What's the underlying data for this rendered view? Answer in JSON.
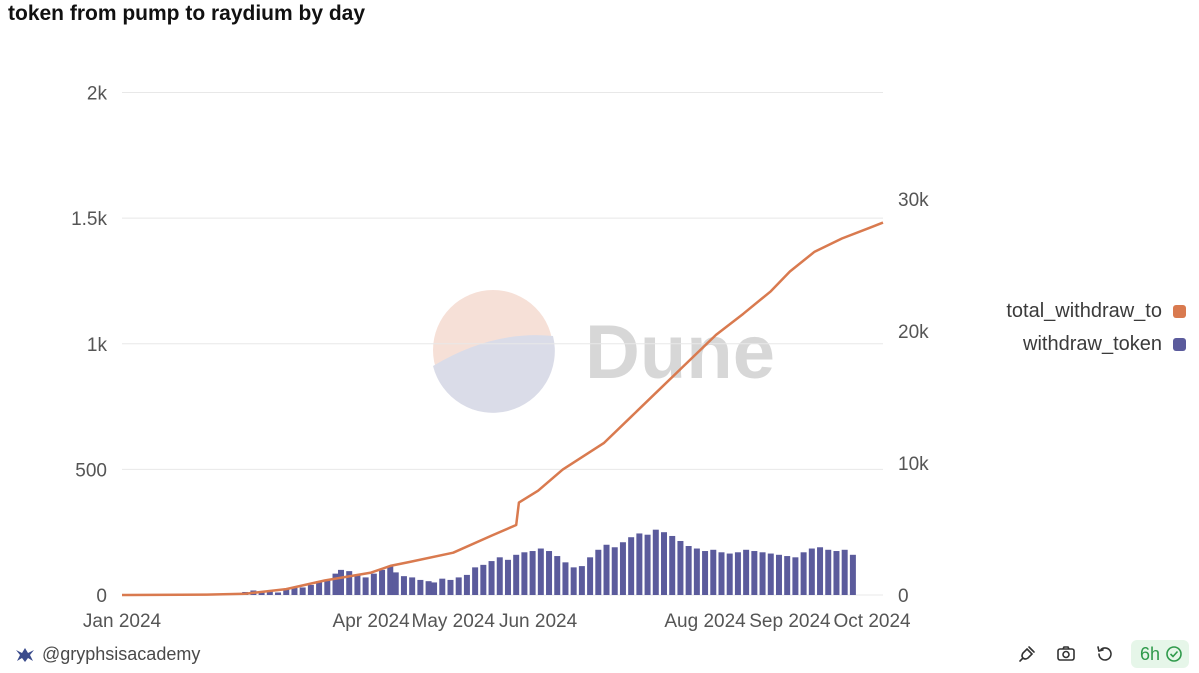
{
  "title": "token from pump to raydium by day",
  "author": "@gryphsisacademy",
  "refresh_badge": "6h",
  "watermark": "Dune",
  "colors": {
    "bar": "#5b5b9c",
    "line": "#d97a4f",
    "grid": "#e8e8e8",
    "axis_text": "#555555"
  },
  "icons": {
    "author_logo": "gryphsis-logo-icon",
    "embed": "plug-icon",
    "screenshot": "camera-icon",
    "refresh": "refresh-icon",
    "fresh_status": "check-circle-icon"
  },
  "chart_data": {
    "type": "bar+line",
    "title": "token from pump to raydium by day",
    "x_range": [
      "2024-01-01",
      "2024-10-05"
    ],
    "x_tick_labels": [
      "Jan 2024",
      "Apr 2024",
      "May 2024",
      "Jun 2024",
      "Aug 2024",
      "Sep 2024",
      "Oct 2024"
    ],
    "y_left_ticks": [
      0,
      500,
      1000,
      1500,
      2000
    ],
    "y_left_tick_labels": [
      "0",
      "500",
      "1k",
      "1.5k",
      "2k"
    ],
    "y_left_range": [
      0,
      2050
    ],
    "y_right_ticks": [
      0,
      10000,
      20000,
      30000
    ],
    "y_right_tick_labels": [
      "0",
      "10k",
      "20k",
      "30k"
    ],
    "y_right_range": [
      0,
      39000
    ],
    "legend": [
      "total_withdraw_to",
      "withdraw_token"
    ],
    "legend_position": "right",
    "grid": true,
    "series": [
      {
        "name": "withdraw_token",
        "axis": "left",
        "kind": "bar",
        "points": [
          [
            "2024-02-15",
            12
          ],
          [
            "2024-02-18",
            18
          ],
          [
            "2024-02-21",
            15
          ],
          [
            "2024-02-24",
            14
          ],
          [
            "2024-02-27",
            10
          ],
          [
            "2024-03-01",
            22
          ],
          [
            "2024-03-04",
            28
          ],
          [
            "2024-03-07",
            30
          ],
          [
            "2024-03-10",
            40
          ],
          [
            "2024-03-13",
            55
          ],
          [
            "2024-03-16",
            60
          ],
          [
            "2024-03-19",
            85
          ],
          [
            "2024-03-21",
            100
          ],
          [
            "2024-03-24",
            95
          ],
          [
            "2024-03-27",
            80
          ],
          [
            "2024-03-30",
            70
          ],
          [
            "2024-04-02",
            85
          ],
          [
            "2024-04-05",
            100
          ],
          [
            "2024-04-08",
            115
          ],
          [
            "2024-04-10",
            90
          ],
          [
            "2024-04-13",
            75
          ],
          [
            "2024-04-16",
            70
          ],
          [
            "2024-04-19",
            60
          ],
          [
            "2024-04-22",
            55
          ],
          [
            "2024-04-24",
            50
          ],
          [
            "2024-04-27",
            65
          ],
          [
            "2024-04-30",
            60
          ],
          [
            "2024-05-03",
            70
          ],
          [
            "2024-05-06",
            80
          ],
          [
            "2024-05-09",
            110
          ],
          [
            "2024-05-12",
            120
          ],
          [
            "2024-05-15",
            135
          ],
          [
            "2024-05-18",
            150
          ],
          [
            "2024-05-21",
            140
          ],
          [
            "2024-05-24",
            160
          ],
          [
            "2024-05-27",
            170
          ],
          [
            "2024-05-30",
            175
          ],
          [
            "2024-06-02",
            185
          ],
          [
            "2024-06-05",
            175
          ],
          [
            "2024-06-08",
            155
          ],
          [
            "2024-06-11",
            130
          ],
          [
            "2024-06-14",
            110
          ],
          [
            "2024-06-17",
            115
          ],
          [
            "2024-06-20",
            150
          ],
          [
            "2024-06-23",
            180
          ],
          [
            "2024-06-26",
            200
          ],
          [
            "2024-06-29",
            190
          ],
          [
            "2024-07-02",
            210
          ],
          [
            "2024-07-05",
            230
          ],
          [
            "2024-07-08",
            245
          ],
          [
            "2024-07-11",
            240
          ],
          [
            "2024-07-14",
            260
          ],
          [
            "2024-07-17",
            250
          ],
          [
            "2024-07-20",
            235
          ],
          [
            "2024-07-23",
            215
          ],
          [
            "2024-07-26",
            195
          ],
          [
            "2024-07-29",
            185
          ],
          [
            "2024-08-01",
            175
          ],
          [
            "2024-08-04",
            180
          ],
          [
            "2024-08-07",
            170
          ],
          [
            "2024-08-10",
            165
          ],
          [
            "2024-08-13",
            170
          ],
          [
            "2024-08-16",
            180
          ],
          [
            "2024-08-19",
            175
          ],
          [
            "2024-08-22",
            170
          ],
          [
            "2024-08-25",
            165
          ],
          [
            "2024-08-28",
            160
          ],
          [
            "2024-08-31",
            155
          ],
          [
            "2024-09-03",
            150
          ],
          [
            "2024-09-06",
            170
          ],
          [
            "2024-09-09",
            185
          ],
          [
            "2024-09-12",
            190
          ],
          [
            "2024-09-15",
            180
          ],
          [
            "2024-09-18",
            175
          ],
          [
            "2024-09-21",
            180
          ],
          [
            "2024-09-24",
            160
          ]
        ]
      },
      {
        "name": "total_withdraw_to",
        "axis": "right",
        "kind": "line",
        "points": [
          [
            "2024-01-01",
            0
          ],
          [
            "2024-02-01",
            30
          ],
          [
            "2024-02-15",
            100
          ],
          [
            "2024-03-01",
            450
          ],
          [
            "2024-03-15",
            1100
          ],
          [
            "2024-04-01",
            1700
          ],
          [
            "2024-04-08",
            2200
          ],
          [
            "2024-04-15",
            2500
          ],
          [
            "2024-05-01",
            3200
          ],
          [
            "2024-05-15",
            4500
          ],
          [
            "2024-05-24",
            5300
          ],
          [
            "2024-05-25",
            7000
          ],
          [
            "2024-06-01",
            7900
          ],
          [
            "2024-06-10",
            9500
          ],
          [
            "2024-06-25",
            11500
          ],
          [
            "2024-07-05",
            13500
          ],
          [
            "2024-07-15",
            15500
          ],
          [
            "2024-07-25",
            17500
          ],
          [
            "2024-08-05",
            19700
          ],
          [
            "2024-08-15",
            21300
          ],
          [
            "2024-08-25",
            23000
          ],
          [
            "2024-09-01",
            24500
          ],
          [
            "2024-09-10",
            26000
          ],
          [
            "2024-09-20",
            27000
          ],
          [
            "2024-09-30",
            27800
          ],
          [
            "2024-10-05",
            28200
          ]
        ]
      }
    ]
  }
}
